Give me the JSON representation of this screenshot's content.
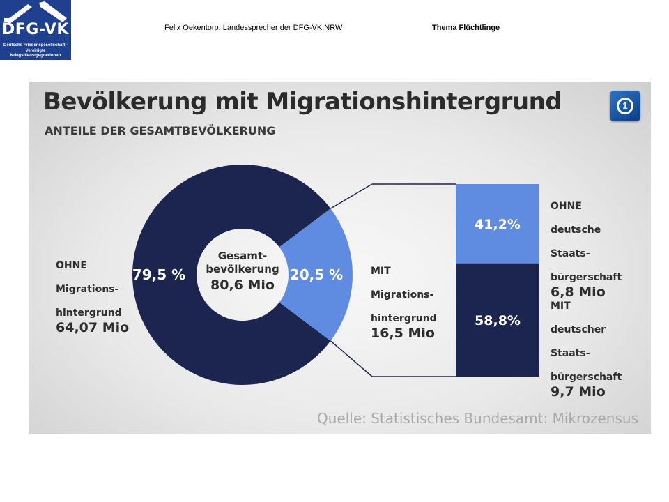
{
  "header": {
    "logo_text": "DFG-VK",
    "logo_subtitle_line1": "Deutsche Friedensgesellschaft -",
    "logo_subtitle_line2": "Vereinigte KriegsdienstgegnerInnen",
    "author": "Felix Oekentorp, Landessprecher der DFG-VK.NRW",
    "topic": "Thema Flüchtlinge"
  },
  "colors": {
    "dark_navy": "#1c2550",
    "light_blue": "#5f8ce0",
    "text": "#2e2e2e",
    "white": "#ffffff"
  },
  "chart_data": [
    {
      "type": "pie",
      "title": "Bevölkerung mit Migrationshintergrund",
      "subtitle": "ANTEILE DER GESAMTBEVÖLKERUNG",
      "center_label_line1": "Gesamt-",
      "center_label_line2": "bevölkerung",
      "center_value": "80,6 Mio",
      "slices": [
        {
          "name": "OHNE Migrationshintergrund",
          "percent": 79.5,
          "percent_label": "79,5 %",
          "label_lines": [
            "OHNE",
            "Migrations-",
            "hintergrund"
          ],
          "value_label": "64,07 Mio",
          "color": "#1c2550"
        },
        {
          "name": "MIT Migrationshintergrund",
          "percent": 20.5,
          "percent_label": "20,5 %",
          "label_lines": [
            "MIT",
            "Migrations-",
            "hintergrund"
          ],
          "value_label": "16,5 Mio",
          "color": "#5f8ce0"
        }
      ]
    },
    {
      "type": "bar",
      "stacked": true,
      "parent": "MIT Migrationshintergrund",
      "segments": [
        {
          "name": "OHNE deutsche Staatsbürgerschaft",
          "percent": 41.2,
          "percent_label": "41,2%",
          "label_lines": [
            "OHNE",
            "deutsche",
            "Staats-",
            "bürgerschaft"
          ],
          "value_label": "6,8 Mio",
          "color": "#5f8ce0"
        },
        {
          "name": "MIT deutscher Staatsbürgerschaft",
          "percent": 58.8,
          "percent_label": "58,8%",
          "label_lines": [
            "MIT",
            "deutscher",
            "Staats-",
            "bürgerschaft"
          ],
          "value_label": "9,7 Mio",
          "color": "#1c2550"
        }
      ]
    }
  ],
  "source": "Quelle: Statistisches Bundesamt: Mikrozensus"
}
